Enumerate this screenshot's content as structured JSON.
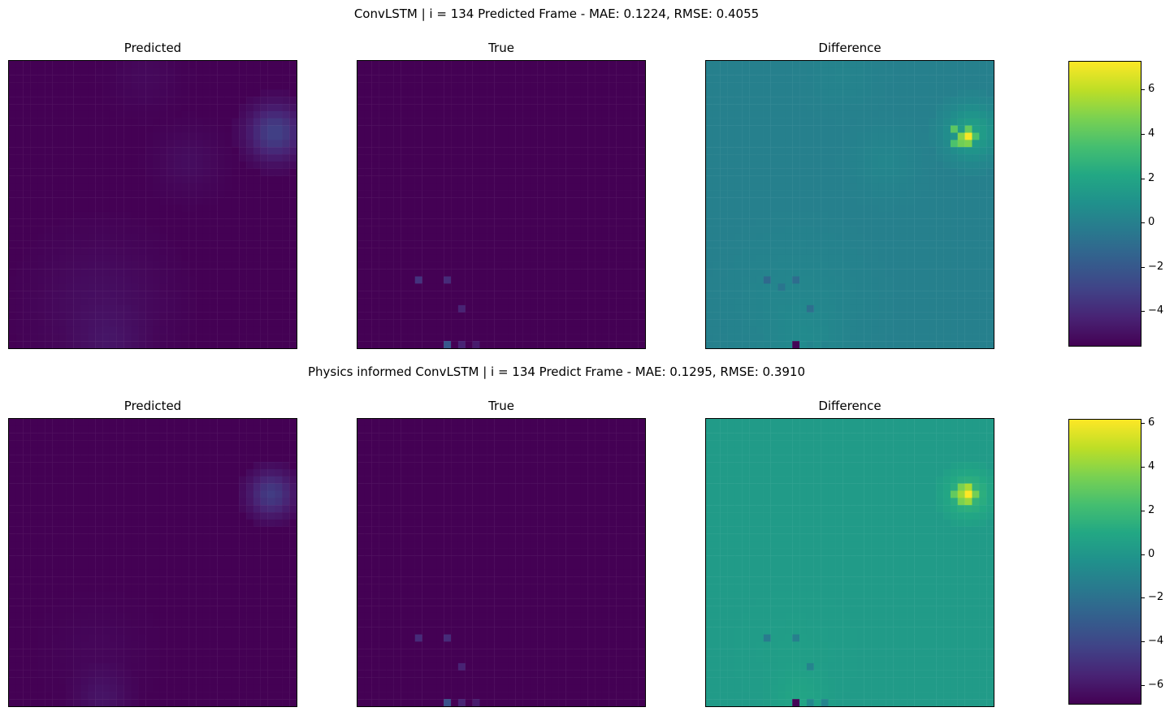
{
  "chart_data": [
    {
      "type": "heatmap",
      "title": "ConvLSTM | i = 134 Predicted Frame - MAE: 0.1224, RMSE: 0.4055",
      "panels": [
        {
          "title": "Predicted"
        },
        {
          "title": "True"
        },
        {
          "title": "Difference"
        }
      ],
      "grid_size": 40,
      "colorbar": {
        "min": -5.6,
        "max": 7.3,
        "ticks": [
          "6",
          "4",
          "2",
          "0",
          "−2",
          "−4"
        ],
        "tick_values": [
          6,
          4,
          2,
          0,
          -2,
          -4
        ]
      },
      "colormap": "viridis",
      "difference_baseline": 0.0,
      "true_sparse_points": [
        [
          8,
          30,
          1.2
        ],
        [
          12,
          30,
          1.0
        ],
        [
          14,
          34,
          0.8
        ],
        [
          12,
          39,
          2.2
        ],
        [
          14,
          39,
          0.8
        ],
        [
          16,
          39,
          0.6
        ]
      ],
      "pred_blobs": [
        [
          36.5,
          9.5,
          2.6,
          3.5
        ],
        [
          24.5,
          13.5,
          3.0,
          0.6
        ],
        [
          12.5,
          33.5,
          6.0,
          0.7
        ],
        [
          18.5,
          1.5,
          3.0,
          0.4
        ],
        [
          13.5,
          39.5,
          3.0,
          0.6
        ]
      ],
      "diff_hot": [
        [
          36,
          10,
          7.2
        ],
        [
          35,
          10,
          5.0
        ],
        [
          35,
          11,
          4.5
        ],
        [
          36,
          11,
          4.8
        ],
        [
          34,
          9,
          4.0
        ],
        [
          36,
          9,
          4.2
        ],
        [
          34,
          11,
          3.6
        ],
        [
          37,
          10,
          3.6
        ]
      ],
      "diff_cold": [
        [
          12,
          39,
          -5.5
        ],
        [
          8,
          30,
          -1.2
        ],
        [
          12,
          30,
          -1.0
        ],
        [
          14,
          34,
          -0.9
        ],
        [
          10,
          31,
          -0.6
        ]
      ]
    },
    {
      "type": "heatmap",
      "title": "Physics informed ConvLSTM | i = 134 Predict Frame - MAE: 0.1295, RMSE: 0.3910",
      "panels": [
        {
          "title": "Predicted"
        },
        {
          "title": "True"
        },
        {
          "title": "Difference"
        }
      ],
      "grid_size": 40,
      "colorbar": {
        "min": -6.9,
        "max": 6.2,
        "ticks": [
          "6",
          "4",
          "2",
          "0",
          "−2",
          "−4",
          "−6"
        ],
        "tick_values": [
          6,
          4,
          2,
          0,
          -2,
          -4,
          -6
        ]
      },
      "colormap": "viridis",
      "difference_baseline": 0.3,
      "true_sparse_points": [
        [
          8,
          30,
          1.0
        ],
        [
          12,
          30,
          1.0
        ],
        [
          14,
          34,
          0.8
        ],
        [
          12,
          39,
          2.0
        ],
        [
          14,
          39,
          0.8
        ],
        [
          16,
          39,
          0.6
        ]
      ],
      "pred_blobs": [
        [
          36.0,
          10.0,
          2.2,
          3.2
        ],
        [
          12.5,
          38.5,
          2.5,
          0.9
        ],
        [
          12.0,
          32.0,
          4.0,
          0.3
        ]
      ],
      "diff_hot": [
        [
          36,
          10,
          6.2
        ],
        [
          36,
          9,
          4.5
        ],
        [
          35,
          10,
          4.4
        ],
        [
          36,
          11,
          4.2
        ],
        [
          35,
          9,
          3.6
        ],
        [
          35,
          11,
          3.6
        ],
        [
          37,
          10,
          3.4
        ],
        [
          34,
          10,
          3.0
        ]
      ],
      "diff_cold": [
        [
          12,
          39,
          -6.8
        ],
        [
          8,
          30,
          -1.5
        ],
        [
          12,
          30,
          -1.2
        ],
        [
          14,
          34,
          -1.0
        ],
        [
          16,
          39,
          -1.0
        ],
        [
          14,
          39,
          -0.8
        ]
      ]
    }
  ]
}
